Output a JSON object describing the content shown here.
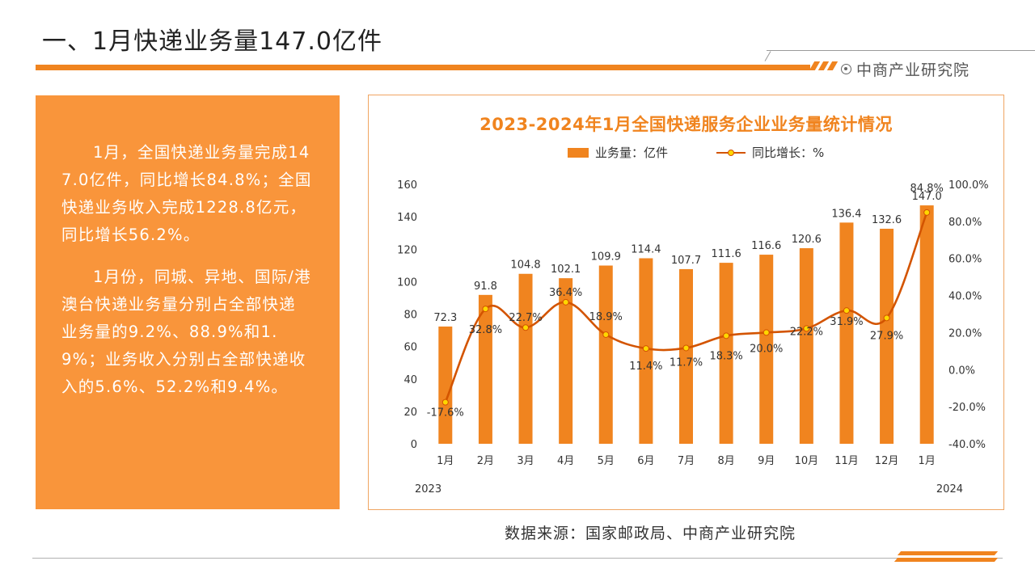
{
  "slide": {
    "title": "一、1月快递业务量147.0亿件",
    "brand": "中商产业研究院",
    "source": "数据来源：国家邮政局、中商产业研究院",
    "accent_color": "#f0841f",
    "panel_color": "#f9953b"
  },
  "panel": {
    "paragraphs": [
      "1月，全国快递业务量完成147.0亿件，同比增长84.8%；全国快递业务收入完成1228.8亿元，同比增长56.2%。",
      "1月份，同城、异地、国际/港澳台快递业务量分别占全部快递业务量的9.2%、88.9%和1.9%；业务收入分别占全部快递收入的5.6%、52.2%和9.4%。"
    ]
  },
  "chart_data": {
    "type": "bar",
    "title": "2023-2024年1月全国快递服务企业业务量统计情况",
    "categories": [
      "1月",
      "2月",
      "3月",
      "4月",
      "5月",
      "6月",
      "7月",
      "8月",
      "9月",
      "10月",
      "11月",
      "12月",
      "1月"
    ],
    "year_labels": [
      "2023",
      "2024"
    ],
    "series": [
      {
        "name": "业务量：亿件",
        "type": "bar",
        "axis": "left",
        "color": "#f0841f",
        "values": [
          72.3,
          91.8,
          104.8,
          102.1,
          109.9,
          114.4,
          107.7,
          111.6,
          116.6,
          120.6,
          136.4,
          132.6,
          147.0
        ],
        "labels": [
          "72.3",
          "91.8",
          "104.8",
          "102.1",
          "109.9",
          "114.4",
          "107.7",
          "111.6",
          "116.6",
          "120.6",
          "136.4",
          "132.6",
          "147.0"
        ]
      },
      {
        "name": "同比增长：%",
        "type": "line",
        "axis": "right",
        "color": "#d35400",
        "marker_color": "#ffd700",
        "values": [
          -17.6,
          32.8,
          22.7,
          36.4,
          18.9,
          11.4,
          11.7,
          18.3,
          20.0,
          22.2,
          31.9,
          27.9,
          84.8
        ],
        "labels": [
          "-17.6%",
          "32.8%",
          "22.7%",
          "36.4%",
          "18.9%",
          "11.4%",
          "11.7%",
          "18.3%",
          "20.0%",
          "22.2%",
          "31.9%",
          "27.9%",
          "84.8%"
        ]
      }
    ],
    "ylim": [
      0,
      160
    ],
    "yticks": [
      "0",
      "20",
      "40",
      "60",
      "80",
      "100",
      "120",
      "140",
      "160"
    ],
    "y2lim": [
      -40,
      100
    ],
    "y2ticks": [
      "-40.0%",
      "-20.0%",
      "0.0%",
      "20.0%",
      "40.0%",
      "60.0%",
      "80.0%",
      "100.0%"
    ],
    "grid": false,
    "legend_position": "top"
  }
}
